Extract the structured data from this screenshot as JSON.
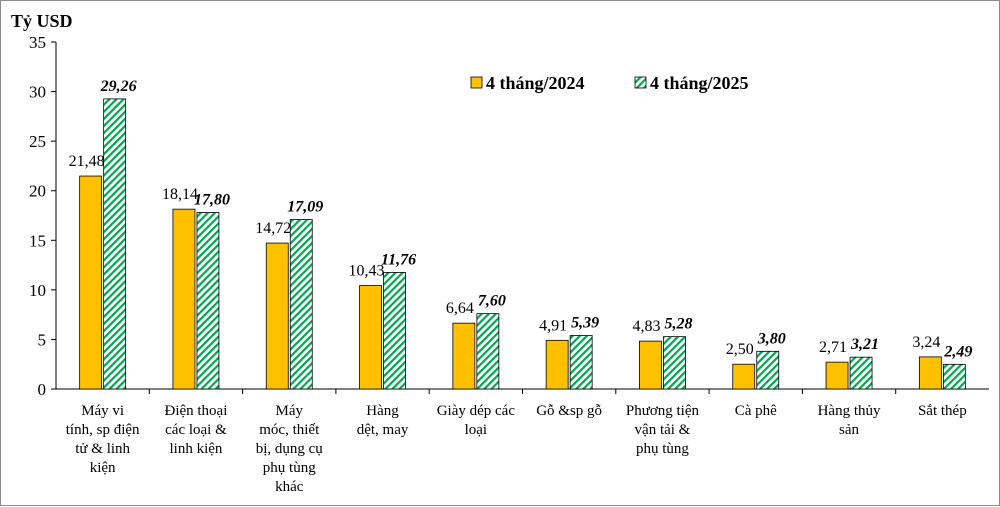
{
  "chart_data": {
    "type": "bar",
    "ylabel": "Tỷ USD",
    "ylim": [
      0,
      35
    ],
    "yticks": [
      0,
      5,
      10,
      15,
      20,
      25,
      30,
      35
    ],
    "legend_position": "top-right",
    "categories": [
      [
        "Máy vi",
        "tính, sp điện",
        "tử & linh",
        "kiện"
      ],
      [
        "Điện thoại",
        "các loại &",
        "linh kiện"
      ],
      [
        "Máy",
        "móc, thiết",
        "bị, dụng cụ",
        "phụ tùng",
        "khác"
      ],
      [
        "Hàng",
        "dệt, may"
      ],
      [
        "Giày dép các",
        "loại"
      ],
      [
        "Gỗ &sp gỗ"
      ],
      [
        "Phương tiện",
        "vận tải &",
        "phụ tùng"
      ],
      [
        "Cà phê"
      ],
      [
        "Hàng thủy",
        "sản"
      ],
      [
        "Sắt thép"
      ]
    ],
    "series": [
      {
        "name": "4 tháng/2024",
        "color": "#FFC000",
        "values": [
          21.48,
          18.14,
          14.72,
          10.43,
          6.64,
          4.91,
          4.83,
          2.5,
          2.71,
          3.24
        ],
        "labels": [
          "21,48",
          "18,14",
          "14,72",
          "10,43",
          "6,64",
          "4,91",
          "4,83",
          "2,50",
          "2,71",
          "3,24"
        ]
      },
      {
        "name": "4 tháng/2025",
        "color": "#00A651",
        "pattern": "diagonal-hatch",
        "values": [
          29.26,
          17.8,
          17.09,
          11.76,
          7.6,
          5.39,
          5.28,
          3.8,
          3.21,
          2.49
        ],
        "labels": [
          "29,26",
          "17,80",
          "17,09",
          "11,76",
          "7,60",
          "5,39",
          "5,28",
          "3,80",
          "3,21",
          "2,49"
        ]
      }
    ]
  }
}
